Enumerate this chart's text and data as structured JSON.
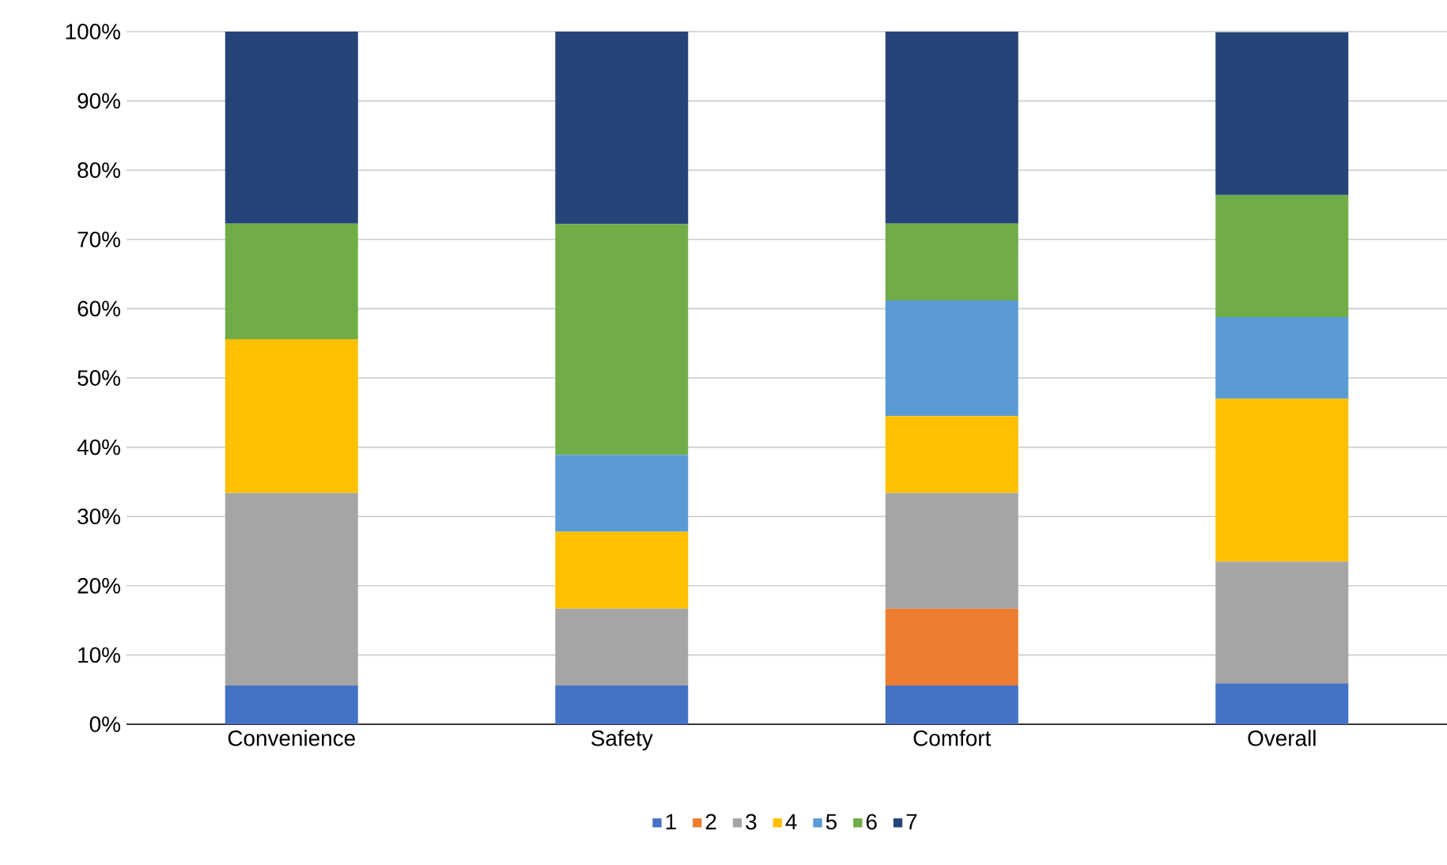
{
  "chart_data": {
    "type": "bar",
    "stacked": true,
    "categories": [
      "Convenience",
      "Safety",
      "Comfort",
      "Overall"
    ],
    "series": [
      {
        "name": "1",
        "color": "#4472c4",
        "values": [
          5.6,
          5.6,
          5.6,
          5.9
        ]
      },
      {
        "name": "2",
        "color": "#ed7d31",
        "values": [
          0,
          0,
          11.1,
          0
        ]
      },
      {
        "name": "3",
        "color": "#a5a5a5",
        "values": [
          27.8,
          11.1,
          16.7,
          17.6
        ]
      },
      {
        "name": "4",
        "color": "#ffc000",
        "values": [
          22.2,
          11.1,
          11.1,
          23.5
        ]
      },
      {
        "name": "5",
        "color": "#5b9bd5",
        "values": [
          0,
          11.1,
          16.7,
          11.8
        ]
      },
      {
        "name": "6",
        "color": "#70ad47",
        "values": [
          16.7,
          33.3,
          11.1,
          17.6
        ]
      },
      {
        "name": "7",
        "color": "#264478",
        "values": [
          27.8,
          27.8,
          27.8,
          23.5
        ]
      }
    ],
    "ylim": [
      0,
      100
    ],
    "yticks": [
      {
        "value": 0,
        "label": "0%"
      },
      {
        "value": 10,
        "label": "10%"
      },
      {
        "value": 20,
        "label": "20%"
      },
      {
        "value": 30,
        "label": "30%"
      },
      {
        "value": 40,
        "label": "40%"
      },
      {
        "value": 50,
        "label": "50%"
      },
      {
        "value": 60,
        "label": "60%"
      },
      {
        "value": 70,
        "label": "70%"
      },
      {
        "value": 80,
        "label": "80%"
      },
      {
        "value": 90,
        "label": "90%"
      },
      {
        "value": 100,
        "label": "100%"
      }
    ],
    "grid": "y",
    "legend": "bottom"
  }
}
